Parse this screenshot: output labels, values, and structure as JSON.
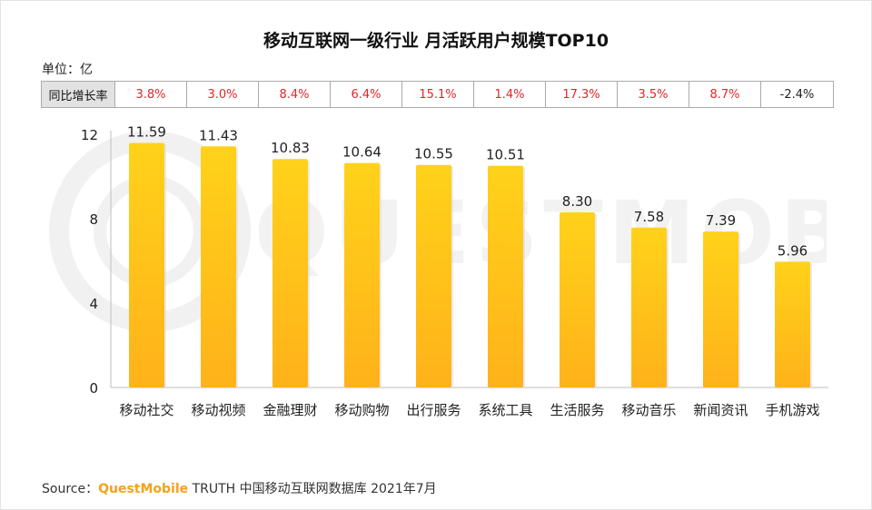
{
  "title": "移动互联网一级行业 月活跃用户规模TOP10",
  "unit_label": "单位：亿",
  "yoy_label": "同比增长率",
  "yoy": [
    "3.8%",
    "3.0%",
    "8.4%",
    "6.4%",
    "15.1%",
    "1.4%",
    "17.3%",
    "3.5%",
    "8.7%",
    "-2.4%"
  ],
  "source": {
    "prefix": "Source：",
    "brand": "QuestMobile",
    "rest": " TRUTH 中国移动互联网数据库 2021年7月"
  },
  "watermark": "QUESTMOBILE",
  "colors": {
    "bar_top": "#ffd21a",
    "bar_bottom": "#ffb21a",
    "positive": "#e0262b",
    "brand": "#f5a21b"
  },
  "chart_data": {
    "type": "bar",
    "title": "移动互联网一级行业 月活跃用户规模TOP10",
    "ylabel": "",
    "xlabel": "",
    "ylim": [
      0,
      12
    ],
    "yticks": [
      0,
      4,
      8,
      12
    ],
    "categories": [
      "移动社交",
      "移动视频",
      "金融理财",
      "移动购物",
      "出行服务",
      "系统工具",
      "生活服务",
      "移动音乐",
      "新闻资讯",
      "手机游戏"
    ],
    "values": [
      11.59,
      11.43,
      10.83,
      10.64,
      10.55,
      10.51,
      8.3,
      7.58,
      7.39,
      5.96
    ],
    "value_labels": [
      "11.59",
      "11.43",
      "10.83",
      "10.64",
      "10.55",
      "10.51",
      "8.30",
      "7.58",
      "7.39",
      "5.96"
    ],
    "grid": false,
    "legend": "none"
  }
}
